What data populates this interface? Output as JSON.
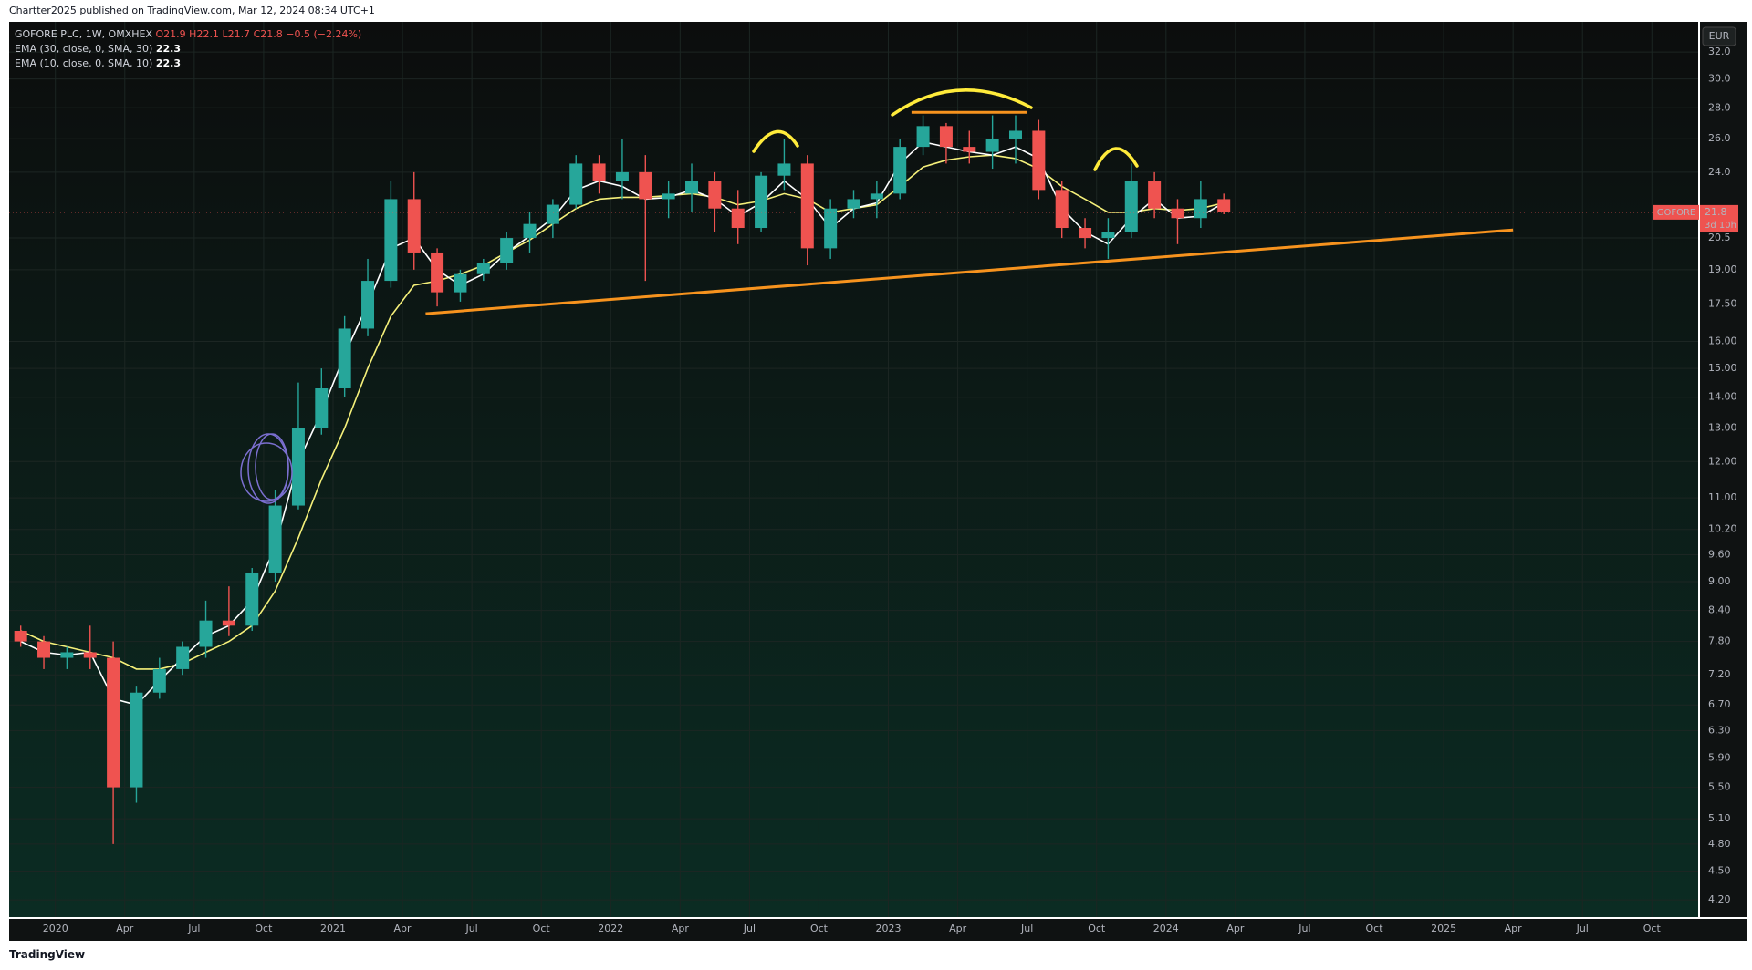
{
  "header": "Chartter2025 published on TradingView.com, Mar 12, 2024 08:34 UTC+1",
  "footer": "TradingView",
  "chart_data": {
    "type": "candlestick",
    "symbol": "GOFORE PLC, 1W, OMXHEX",
    "ohlc_legend": [
      "O21.9",
      "H22.1",
      "L21.7",
      "C21.8",
      "−0.5 (−2.24%)"
    ],
    "currency": "EUR",
    "ticker": "GOFORE",
    "last_price": 21.8,
    "countdown": "3d 10h",
    "log_scale": true,
    "grid": true,
    "up_color": "#26a69a",
    "down_color": "#ef5350",
    "x": [
      "2019-11",
      "2019-12",
      "2020-01",
      "2020-02",
      "2020-03",
      "2020-04",
      "2020-05",
      "2020-06",
      "2020-07",
      "2020-08",
      "2020-09",
      "2020-10",
      "2020-11",
      "2020-12",
      "2021-01",
      "2021-02",
      "2021-03",
      "2021-04",
      "2021-05",
      "2021-06",
      "2021-07",
      "2021-08",
      "2021-09",
      "2021-10",
      "2021-11",
      "2021-12",
      "2022-01",
      "2022-02",
      "2022-03",
      "2022-04",
      "2022-05",
      "2022-06",
      "2022-07",
      "2022-08",
      "2022-09",
      "2022-10",
      "2022-11",
      "2022-12",
      "2023-01",
      "2023-02",
      "2023-03",
      "2023-04",
      "2023-05",
      "2023-06",
      "2023-07",
      "2023-08",
      "2023-09",
      "2023-10",
      "2023-11",
      "2023-12",
      "2024-01",
      "2024-02",
      "2024-03"
    ],
    "open": [
      8.0,
      7.8,
      7.5,
      7.6,
      7.5,
      5.5,
      6.9,
      7.3,
      7.7,
      8.2,
      8.1,
      9.2,
      10.8,
      13.0,
      14.3,
      16.5,
      18.5,
      22.5,
      19.8,
      18.0,
      18.8,
      19.3,
      20.5,
      21.2,
      22.2,
      24.5,
      23.5,
      24.0,
      22.5,
      22.8,
      23.5,
      22.0,
      21.0,
      23.8,
      24.5,
      20.0,
      22.0,
      22.5,
      22.8,
      25.5,
      26.8,
      25.5,
      25.2,
      26.0,
      26.5,
      23.0,
      21.0,
      20.5,
      20.8,
      23.5,
      22.0,
      21.5,
      22.5
    ],
    "high": [
      8.1,
      7.9,
      7.7,
      8.1,
      7.8,
      7.0,
      7.5,
      7.8,
      8.6,
      8.9,
      9.3,
      11.2,
      14.5,
      15.0,
      17.0,
      19.5,
      23.5,
      24.0,
      20.0,
      19.0,
      19.5,
      20.8,
      21.8,
      22.5,
      25.0,
      25.0,
      26.0,
      25.0,
      23.5,
      24.5,
      24.0,
      23.0,
      24.0,
      26.0,
      25.0,
      22.5,
      23.0,
      23.5,
      26.0,
      27.5,
      27.0,
      26.5,
      27.5,
      27.5,
      27.2,
      23.5,
      21.5,
      21.5,
      24.5,
      24.0,
      22.5,
      23.5,
      22.8
    ],
    "low": [
      7.7,
      7.3,
      7.3,
      7.3,
      4.8,
      5.3,
      6.8,
      7.2,
      7.5,
      7.9,
      8.0,
      9.0,
      10.7,
      12.8,
      14.0,
      16.2,
      18.2,
      19.0,
      17.4,
      17.6,
      18.5,
      19.0,
      19.8,
      20.5,
      22.0,
      22.8,
      22.5,
      18.5,
      21.5,
      21.8,
      20.8,
      20.2,
      20.8,
      23.0,
      19.2,
      19.5,
      21.5,
      21.5,
      22.5,
      25.0,
      24.5,
      24.5,
      24.2,
      24.5,
      22.5,
      20.5,
      20.0,
      19.5,
      20.5,
      21.5,
      20.2,
      21.0,
      21.7
    ],
    "close": [
      7.8,
      7.5,
      7.6,
      7.5,
      5.5,
      6.9,
      7.3,
      7.7,
      8.2,
      8.1,
      9.2,
      10.8,
      13.0,
      14.3,
      16.5,
      18.5,
      22.5,
      19.8,
      18.0,
      18.8,
      19.3,
      20.5,
      21.2,
      22.2,
      24.5,
      23.5,
      24.0,
      22.5,
      22.8,
      23.5,
      22.0,
      21.0,
      23.8,
      24.5,
      20.0,
      22.0,
      22.5,
      22.8,
      25.5,
      26.8,
      25.5,
      25.2,
      26.0,
      26.5,
      23.0,
      21.0,
      20.5,
      20.8,
      23.5,
      22.0,
      21.5,
      22.5,
      21.8
    ],
    "series": [
      {
        "name": "EMA (30, close, 0, SMA, 30)",
        "color": "#f5f07a",
        "legend_value": 22.3,
        "values": [
          8.0,
          7.8,
          7.7,
          7.6,
          7.5,
          7.3,
          7.3,
          7.4,
          7.6,
          7.8,
          8.1,
          8.8,
          10.0,
          11.5,
          13.0,
          15.0,
          17.0,
          18.3,
          18.5,
          18.8,
          19.2,
          19.8,
          20.4,
          21.2,
          22.0,
          22.5,
          22.6,
          22.6,
          22.7,
          22.8,
          22.6,
          22.2,
          22.4,
          22.8,
          22.5,
          21.8,
          22.0,
          22.2,
          23.2,
          24.3,
          24.7,
          24.9,
          25.0,
          24.8,
          24.2,
          23.2,
          22.5,
          21.8,
          21.8,
          22.0,
          21.9,
          22.0,
          22.3
        ]
      },
      {
        "name": "EMA (10, close, 0, SMA, 10)",
        "color": "#ffffff",
        "legend_value": 22.3,
        "values": [
          7.8,
          7.6,
          7.55,
          7.6,
          6.8,
          6.7,
          7.1,
          7.5,
          7.9,
          8.1,
          8.6,
          9.8,
          12.0,
          13.5,
          15.5,
          17.5,
          20.0,
          20.5,
          19.0,
          18.3,
          18.8,
          19.8,
          20.6,
          21.5,
          23.0,
          23.5,
          23.2,
          22.5,
          22.6,
          23.0,
          22.5,
          21.6,
          22.3,
          23.5,
          22.5,
          21.0,
          22.0,
          22.3,
          24.5,
          25.8,
          25.5,
          25.2,
          25.0,
          25.5,
          24.8,
          22.0,
          20.8,
          20.2,
          21.5,
          22.5,
          21.5,
          21.6,
          22.3
        ]
      }
    ],
    "trendlines": [
      {
        "color": "#f7931e",
        "x": [
          "2021-05",
          "2025-04"
        ],
        "y": [
          17.1,
          20.9
        ]
      },
      {
        "color": "#f7931e",
        "x": [
          "2023-02",
          "2023-07"
        ],
        "y": [
          27.7,
          27.7
        ]
      }
    ],
    "xlim": [
      "2019-11",
      "2025-12"
    ],
    "xticks": [
      {
        "value": "2020-01",
        "label": "2020"
      },
      {
        "value": "2020-04",
        "label": "Apr"
      },
      {
        "value": "2020-07",
        "label": "Jul"
      },
      {
        "value": "2020-10",
        "label": "Oct"
      },
      {
        "value": "2021-01",
        "label": "2021"
      },
      {
        "value": "2021-04",
        "label": "Apr"
      },
      {
        "value": "2021-07",
        "label": "Jul"
      },
      {
        "value": "2021-10",
        "label": "Oct"
      },
      {
        "value": "2022-01",
        "label": "2022"
      },
      {
        "value": "2022-04",
        "label": "Apr"
      },
      {
        "value": "2022-07",
        "label": "Jul"
      },
      {
        "value": "2022-10",
        "label": "Oct"
      },
      {
        "value": "2023-01",
        "label": "2023"
      },
      {
        "value": "2023-04",
        "label": "Apr"
      },
      {
        "value": "2023-07",
        "label": "Jul"
      },
      {
        "value": "2023-10",
        "label": "Oct"
      },
      {
        "value": "2024-01",
        "label": "2024"
      },
      {
        "value": "2024-04",
        "label": "Apr"
      },
      {
        "value": "2024-07",
        "label": "Jul"
      },
      {
        "value": "2024-10",
        "label": "Oct"
      },
      {
        "value": "2025-01",
        "label": "2025"
      },
      {
        "value": "2025-04",
        "label": "Apr"
      },
      {
        "value": "2025-07",
        "label": "Jul"
      },
      {
        "value": "2025-10",
        "label": "Oct"
      }
    ],
    "ylim": [
      4.03,
      34.4
    ],
    "yticks": [
      {
        "value": 32,
        "label": "32.0"
      },
      {
        "value": 30,
        "label": "30.0"
      },
      {
        "value": 28,
        "label": "28.0"
      },
      {
        "value": 26,
        "label": "26.0"
      },
      {
        "value": 24,
        "label": "24.0"
      },
      20.5,
      {
        "value": 19,
        "label": "19.00"
      },
      {
        "value": 17.5,
        "label": "17.50"
      },
      {
        "value": 16,
        "label": "16.00"
      },
      {
        "value": 15,
        "label": "15.00"
      },
      {
        "value": 14,
        "label": "14.00"
      },
      {
        "value": 13,
        "label": "13.00"
      },
      {
        "value": 12,
        "label": "12.00"
      },
      {
        "value": 11,
        "label": "11.00"
      },
      {
        "value": 10.2,
        "label": "10.20"
      },
      {
        "value": 9.6,
        "label": "9.60"
      },
      {
        "value": 9,
        "label": "9.00"
      },
      {
        "value": 8.4,
        "label": "8.40"
      },
      {
        "value": 7.8,
        "label": "7.80"
      },
      {
        "value": 7.2,
        "label": "7.20"
      },
      {
        "value": 6.7,
        "label": "6.70"
      },
      {
        "value": 6.3,
        "label": "6.30"
      },
      {
        "value": 5.9,
        "label": "5.90"
      },
      {
        "value": 5.5,
        "label": "5.50"
      },
      {
        "value": 5.1,
        "label": "5.10"
      },
      {
        "value": 4.8,
        "label": "4.80"
      },
      {
        "value": 4.5,
        "label": "4.50"
      },
      {
        "value": 4.2,
        "label": "4.20"
      }
    ]
  }
}
